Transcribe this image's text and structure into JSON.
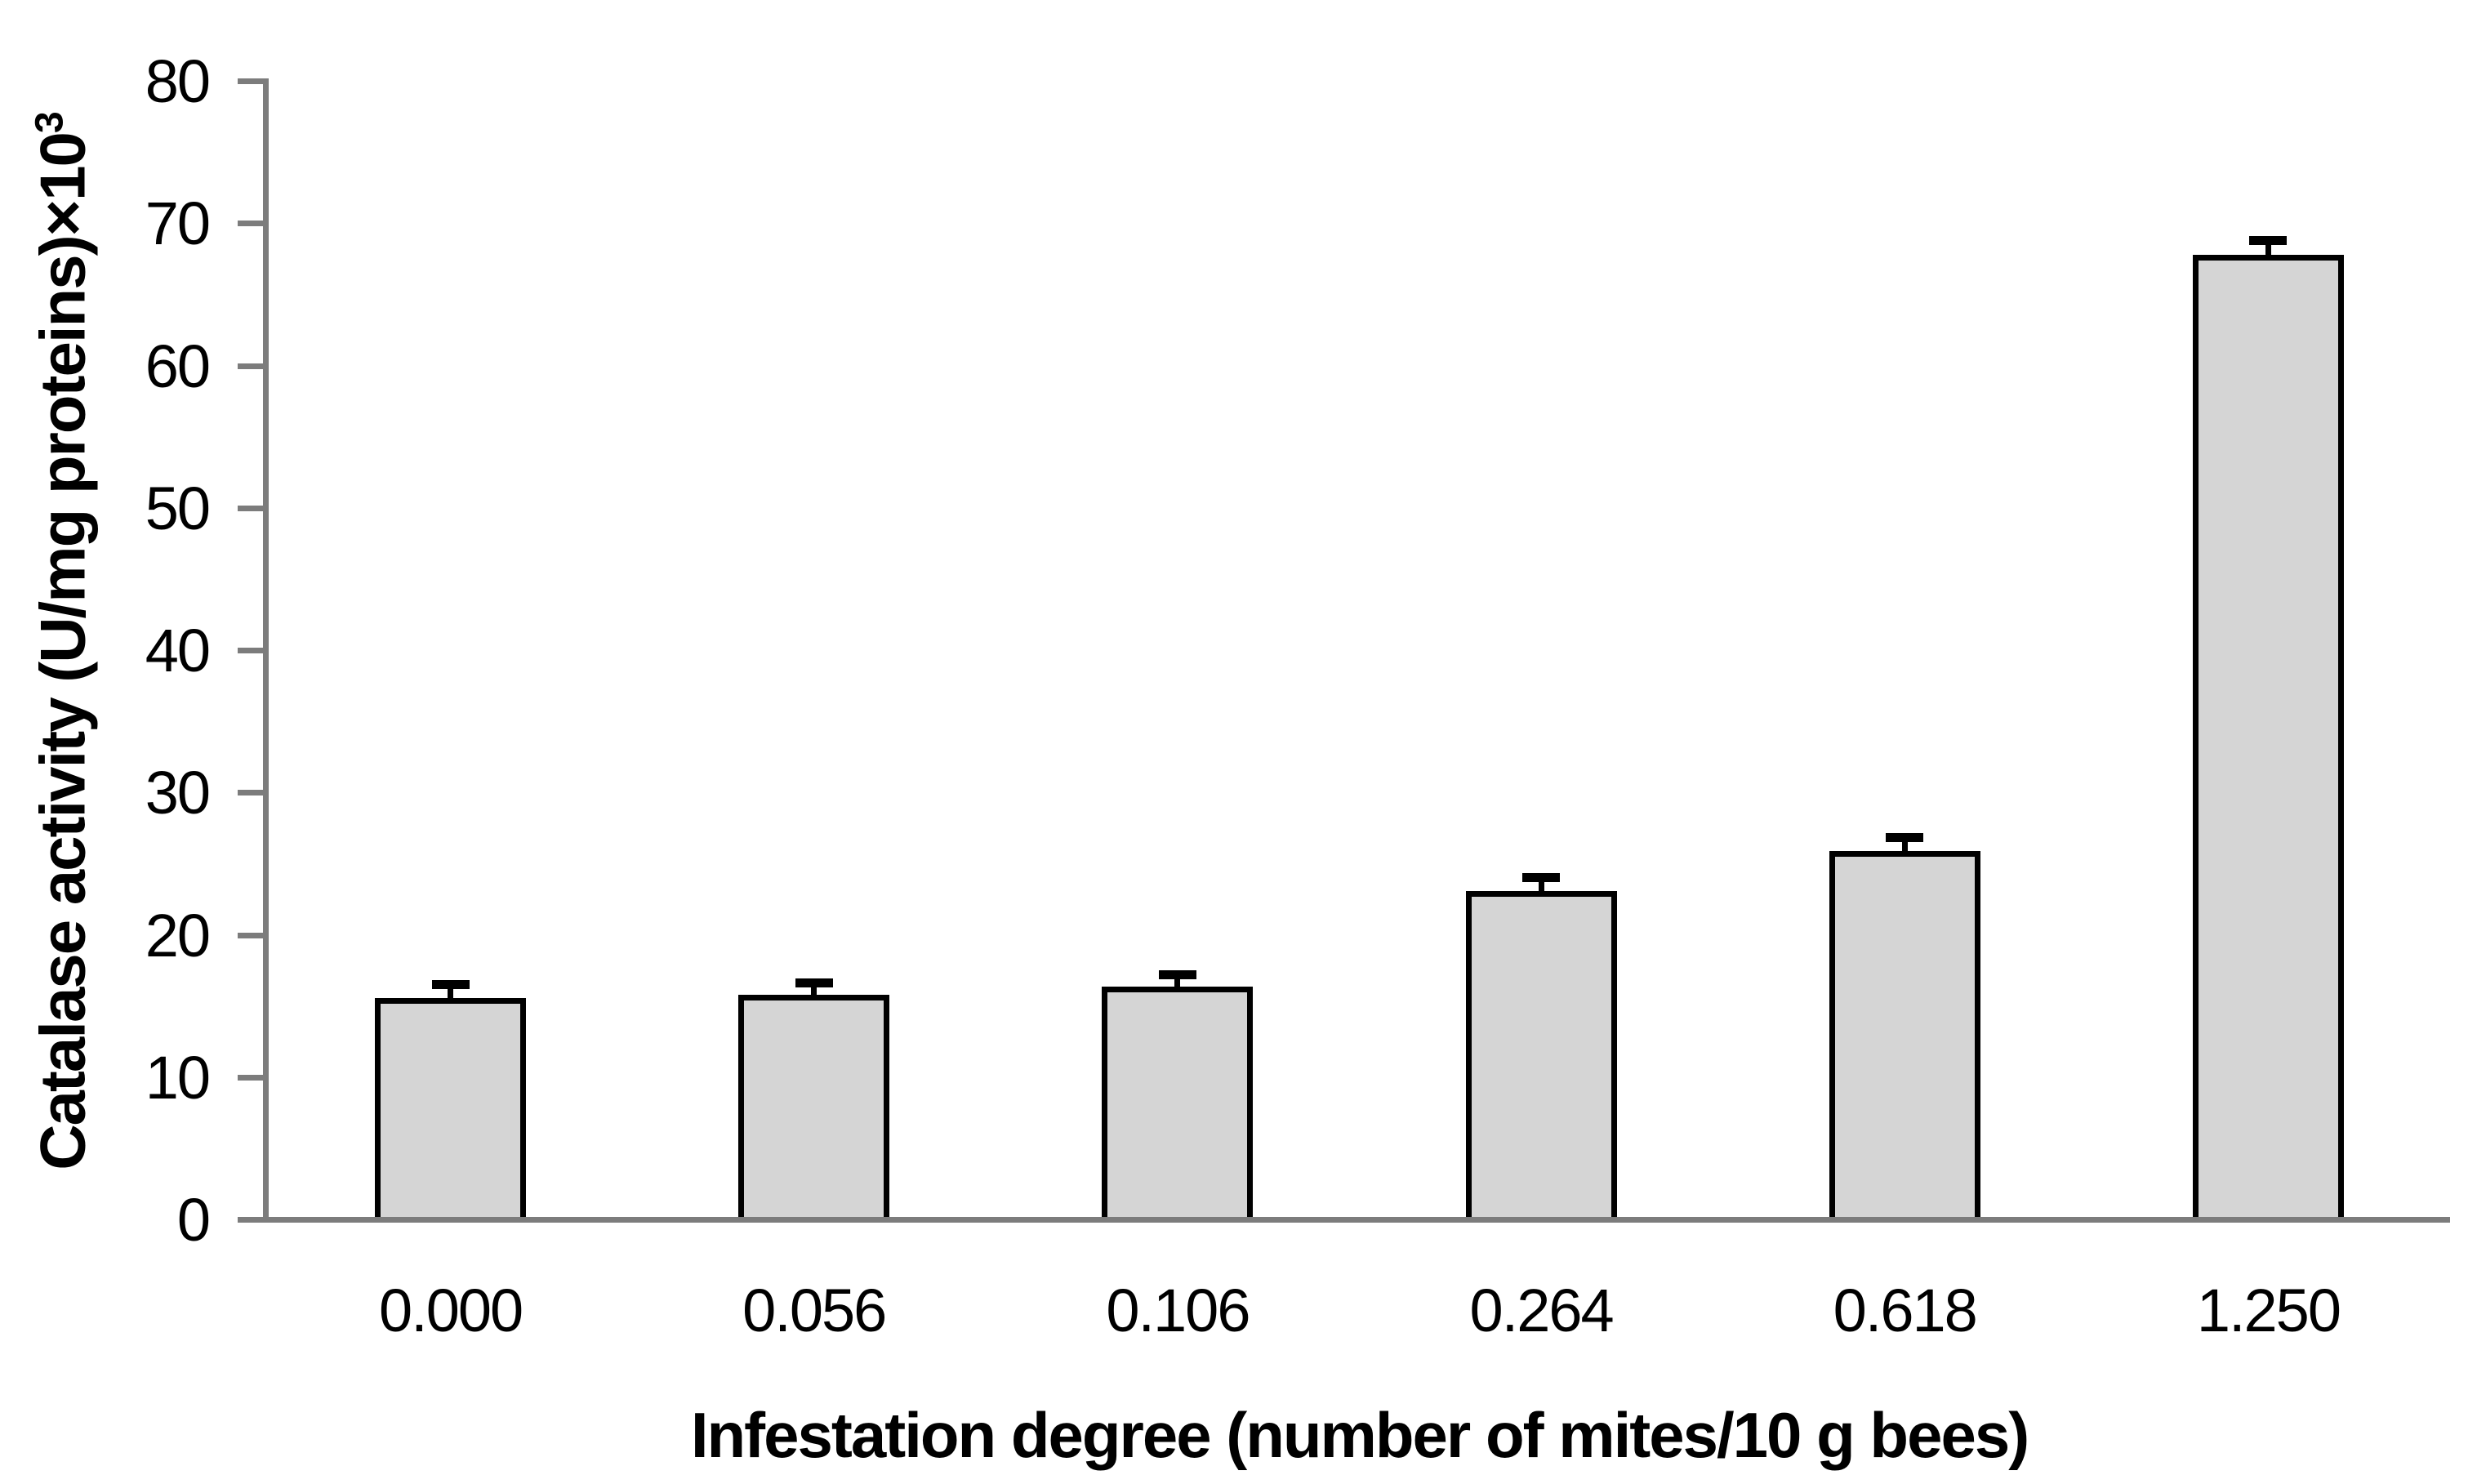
{
  "chart_data": {
    "type": "bar",
    "title": "",
    "categories": [
      "0.000",
      "0.056",
      "0.106",
      "0.264",
      "0.618",
      "1.250"
    ],
    "values": [
      15.4,
      15.6,
      16.2,
      22.9,
      25.7,
      67.6
    ],
    "error_bars_plus": [
      0.9,
      0.8,
      0.8,
      0.9,
      0.9,
      1.0
    ],
    "xlabel": "Infestation degree (number of mites/10 g bees)",
    "ylabel": "Catalase activity (U/mg proteins)×10³",
    "ylabel_base": "Catalase activity (U/mg proteins)×10",
    "ylabel_exponent": "3",
    "ylim": [
      0,
      80
    ],
    "yticks": [
      0,
      10,
      20,
      30,
      40,
      50,
      60,
      70,
      80
    ],
    "grid": false,
    "legend_position": "none",
    "colors": {
      "bar_fill": "#d5d5d5",
      "bar_border": "#000000",
      "axis_line": "#7c7c7c",
      "error_bar": "#000000",
      "text": "#000000",
      "background": "#ffffff"
    }
  }
}
